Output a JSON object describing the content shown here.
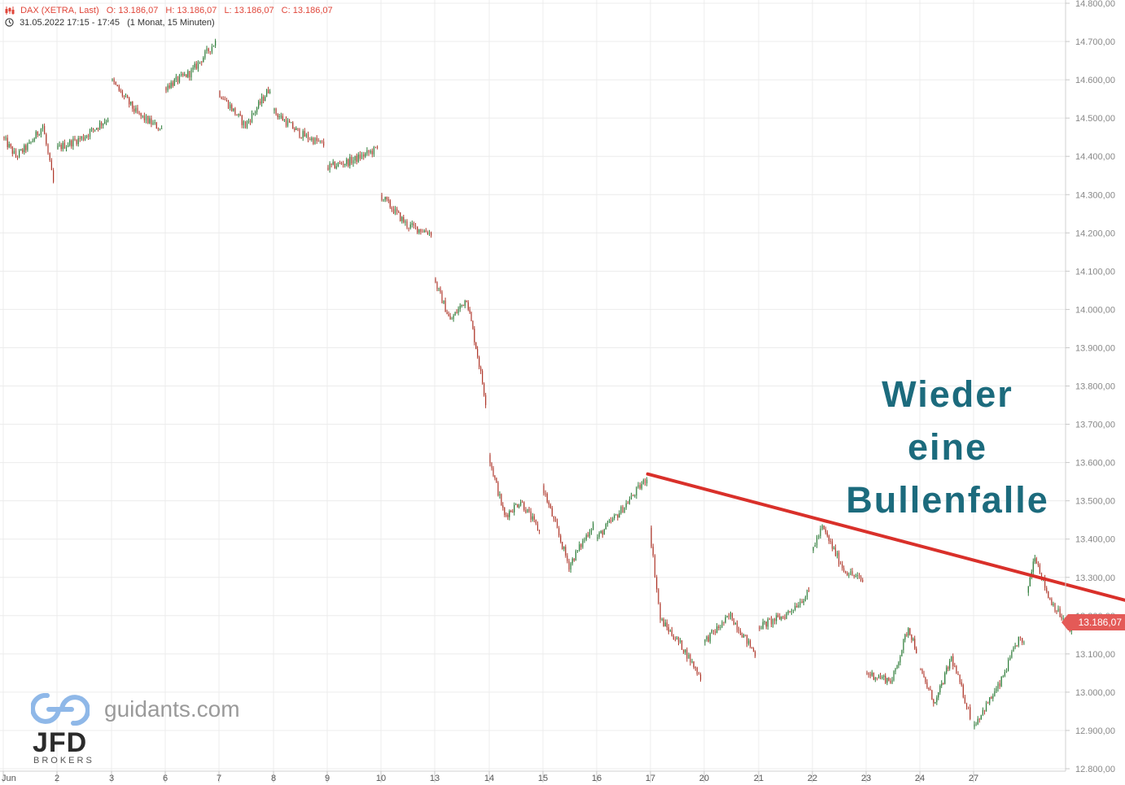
{
  "header": {
    "instrument": "DAX (XETRA, Last)",
    "open": "O: 13.186,07",
    "high": "H: 13.186,07",
    "low": "L: 13.186,07",
    "close": "C: 13.186,07",
    "timerange": "31.05.2022 17:15 - 17:45",
    "interval": "(1 Monat, 15 Minuten)"
  },
  "annotation": {
    "line1": "Wieder",
    "line2": "eine",
    "line3": "Bullenfalle"
  },
  "last_price_label": "13.186,07",
  "watermark": {
    "site": "guidants.com",
    "brand": "JFD",
    "brand_sub": "BROKERS"
  },
  "colors": {
    "up": "#2f7d3a",
    "down": "#b03a2e",
    "trendline": "#d9302a",
    "annotation": "#1c6b7d",
    "header": "#e0463a",
    "price_tag": "#e45a57",
    "grid": "#ececec"
  },
  "chart_data": {
    "type": "candlestick",
    "x_axis_labels": [
      "Jun",
      "2",
      "3",
      "6",
      "7",
      "8",
      "9",
      "10",
      "13",
      "14",
      "15",
      "16",
      "17",
      "20",
      "21",
      "22",
      "23",
      "24",
      "27"
    ],
    "y_tick_labels": [
      "14.800,00",
      "14.700,00",
      "14.600,00",
      "14.500,00",
      "14.400,00",
      "14.300,00",
      "14.200,00",
      "14.100,00",
      "14.000,00",
      "13.900,00",
      "13.800,00",
      "13.700,00",
      "13.600,00",
      "13.500,00",
      "13.400,00",
      "13.300,00",
      "13.200,00",
      "13.100,00",
      "13.000,00",
      "12.900,00",
      "12.800,00"
    ],
    "ylim": [
      12800,
      14800
    ],
    "grid": true,
    "price_path": [
      {
        "day": 0,
        "p": 14450
      },
      {
        "day": 0.25,
        "p": 14400
      },
      {
        "day": 0.5,
        "p": 14430
      },
      {
        "day": 0.75,
        "p": 14480
      },
      {
        "day": 0.95,
        "p": 14330
      },
      {
        "day": 1.0,
        "p": 14420
      },
      {
        "day": 1.5,
        "p": 14450
      },
      {
        "day": 1.95,
        "p": 14500
      },
      {
        "day": 2.0,
        "p": 14600
      },
      {
        "day": 2.5,
        "p": 14510
      },
      {
        "day": 2.95,
        "p": 14470
      },
      {
        "day": 3.0,
        "p": 14580
      },
      {
        "day": 3.5,
        "p": 14620
      },
      {
        "day": 3.95,
        "p": 14700
      },
      {
        "day": 4.0,
        "p": 14570
      },
      {
        "day": 4.5,
        "p": 14480
      },
      {
        "day": 4.95,
        "p": 14580
      },
      {
        "day": 5.0,
        "p": 14520
      },
      {
        "day": 5.5,
        "p": 14460
      },
      {
        "day": 5.95,
        "p": 14430
      },
      {
        "day": 6.0,
        "p": 14370
      },
      {
        "day": 6.5,
        "p": 14390
      },
      {
        "day": 6.95,
        "p": 14420
      },
      {
        "day": 7.0,
        "p": 14300
      },
      {
        "day": 7.5,
        "p": 14220
      },
      {
        "day": 7.95,
        "p": 14200
      },
      {
        "day": 8.0,
        "p": 14080
      },
      {
        "day": 8.3,
        "p": 13970
      },
      {
        "day": 8.6,
        "p": 14030
      },
      {
        "day": 8.8,
        "p": 13880
      },
      {
        "day": 8.95,
        "p": 13760
      },
      {
        "day": 9.0,
        "p": 13620
      },
      {
        "day": 9.3,
        "p": 13460
      },
      {
        "day": 9.6,
        "p": 13500
      },
      {
        "day": 9.95,
        "p": 13420
      },
      {
        "day": 10.0,
        "p": 13540
      },
      {
        "day": 10.5,
        "p": 13330
      },
      {
        "day": 10.95,
        "p": 13440
      },
      {
        "day": 11.0,
        "p": 13400
      },
      {
        "day": 11.5,
        "p": 13480
      },
      {
        "day": 11.95,
        "p": 13560
      },
      {
        "day": 12.0,
        "p": 13430
      },
      {
        "day": 12.2,
        "p": 13190
      },
      {
        "day": 12.6,
        "p": 13120
      },
      {
        "day": 12.95,
        "p": 13040
      },
      {
        "day": 13.0,
        "p": 13130
      },
      {
        "day": 13.5,
        "p": 13200
      },
      {
        "day": 13.95,
        "p": 13100
      },
      {
        "day": 14.0,
        "p": 13170
      },
      {
        "day": 14.5,
        "p": 13200
      },
      {
        "day": 14.95,
        "p": 13260
      },
      {
        "day": 15.0,
        "p": 13370
      },
      {
        "day": 15.2,
        "p": 13430
      },
      {
        "day": 15.6,
        "p": 13320
      },
      {
        "day": 15.95,
        "p": 13290
      },
      {
        "day": 16.0,
        "p": 13050
      },
      {
        "day": 16.5,
        "p": 13030
      },
      {
        "day": 16.8,
        "p": 13170
      },
      {
        "day": 16.95,
        "p": 13110
      },
      {
        "day": 17.0,
        "p": 13060
      },
      {
        "day": 17.3,
        "p": 12970
      },
      {
        "day": 17.6,
        "p": 13090
      },
      {
        "day": 17.95,
        "p": 12940
      },
      {
        "day": 18.0,
        "p": 12910
      },
      {
        "day": 18.5,
        "p": 13020
      },
      {
        "day": 18.85,
        "p": 13140
      },
      {
        "day": 18.95,
        "p": 13120
      },
      {
        "day": 19.0,
        "p": 13260
      },
      {
        "day": 19.15,
        "p": 13360
      },
      {
        "day": 19.4,
        "p": 13250
      },
      {
        "day": 19.8,
        "p": 13160
      },
      {
        "day": 19.95,
        "p": 13200
      }
    ],
    "trendline": {
      "from": {
        "day": 11.95,
        "p": 13570
      },
      "to": {
        "day": 20.95,
        "p": 13235
      }
    }
  }
}
